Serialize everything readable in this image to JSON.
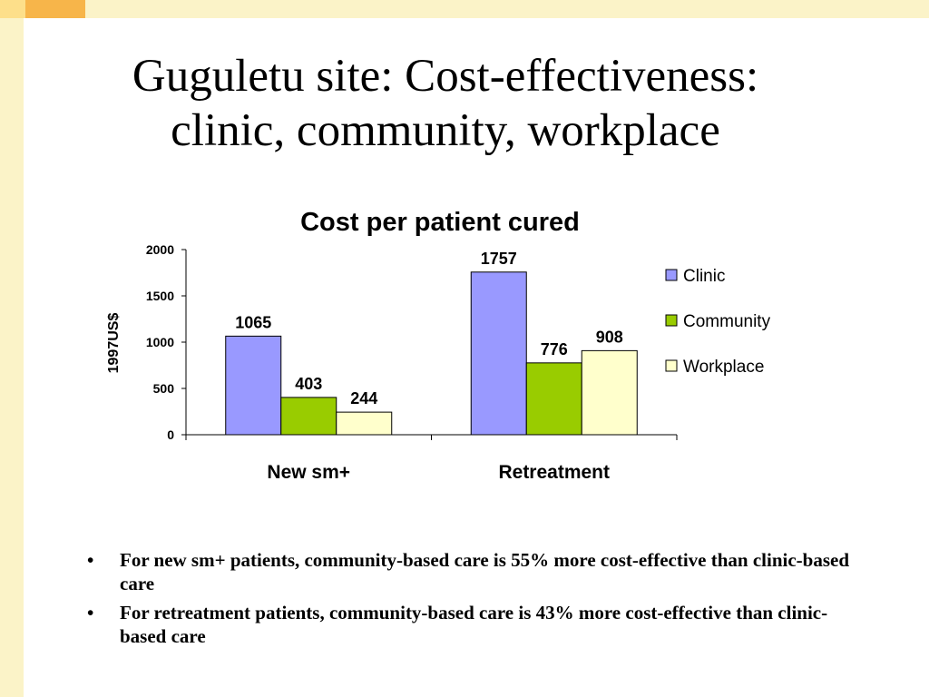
{
  "slide": {
    "title_line1": "Guguletu site: Cost-effectiveness:",
    "title_line2": "clinic, community, workplace",
    "bullet_glyph": "•",
    "bullets": [
      "For new sm+ patients, community-based care is 55% more cost-effective  than clinic-based care",
      "For retreatment patients, community-based care is 43% more cost-effective than clinic-based care"
    ]
  },
  "chart_data": {
    "type": "bar",
    "title": "Cost per patient cured",
    "ylabel": "1997US$",
    "xlabel": "",
    "categories": [
      "New sm+",
      "Retreatment"
    ],
    "series": [
      {
        "name": "Clinic",
        "values": [
          1065,
          1757
        ],
        "color": "#9999ff"
      },
      {
        "name": "Community",
        "values": [
          403,
          776
        ],
        "color": "#99cc00"
      },
      {
        "name": "Workplace",
        "values": [
          244,
          908
        ],
        "color": "#ffffcc"
      }
    ],
    "ylim": [
      0,
      2000
    ],
    "yticks": [
      "0",
      "500",
      "1000",
      "1500",
      "2000"
    ],
    "legend": "right",
    "grid": false
  }
}
